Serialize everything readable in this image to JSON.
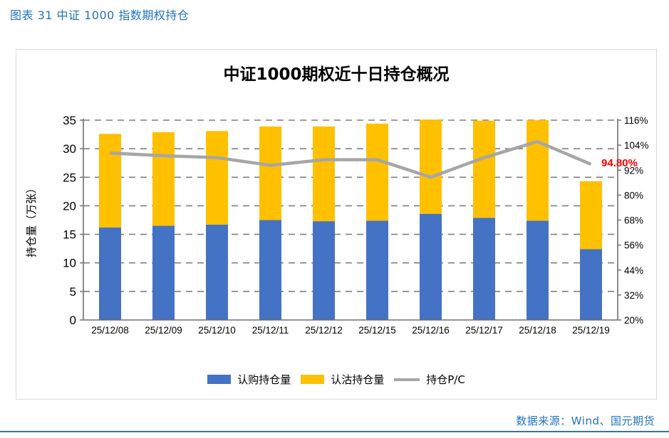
{
  "page": {
    "header_title": "图表 31  中证 1000 指数期权持仓",
    "source_text": "数据来源：Wind、国元期货",
    "accent_color": "#2173C2",
    "divider_color": "#2E74B5"
  },
  "chart_data": {
    "type": "bar",
    "subtype": "stacked-bars-with-line",
    "title": "中证1000期权近十日持仓概况",
    "categories": [
      "25/12/08",
      "25/12/09",
      "25/12/10",
      "25/12/11",
      "25/12/12",
      "25/12/15",
      "25/12/16",
      "25/12/17",
      "25/12/18",
      "25/12/19"
    ],
    "series": [
      {
        "name": "认购持仓量",
        "type": "bar",
        "stack": true,
        "axis": "left",
        "color": "#4472C4",
        "values": [
          16.2,
          16.5,
          16.7,
          17.5,
          17.3,
          17.4,
          18.6,
          17.9,
          17.4,
          12.4
        ]
      },
      {
        "name": "认沽持仓量",
        "type": "bar",
        "stack": true,
        "axis": "left",
        "color": "#FFC000",
        "values": [
          16.4,
          16.4,
          16.4,
          16.4,
          16.6,
          17.0,
          16.5,
          17.0,
          17.6,
          11.9
        ]
      },
      {
        "name": "持仓P/C",
        "type": "line",
        "axis": "right",
        "color": "#A6A6A6",
        "values": [
          100.2,
          98.9,
          98.0,
          94.3,
          97.0,
          97.0,
          88.6,
          98.0,
          105.7,
          94.8
        ]
      }
    ],
    "ylabel_left": "持仓量（万张）",
    "y_left_ticks": [
      0,
      5,
      10,
      15,
      20,
      25,
      30,
      35
    ],
    "y_left_range": [
      0,
      35
    ],
    "y_right_ticks": [
      "20%",
      "32%",
      "44%",
      "56%",
      "68%",
      "80%",
      "92%",
      "104%",
      "116%"
    ],
    "y_right_range": [
      20,
      116
    ],
    "annotation": {
      "text": "94.80%",
      "color": "#FF0000",
      "series": "持仓P/C",
      "category": "25/12/19"
    },
    "grid": "horizontal-dashed",
    "grid_color": "#7F7F7F",
    "axis_color": "#6E6E6E",
    "legend_position": "bottom"
  }
}
